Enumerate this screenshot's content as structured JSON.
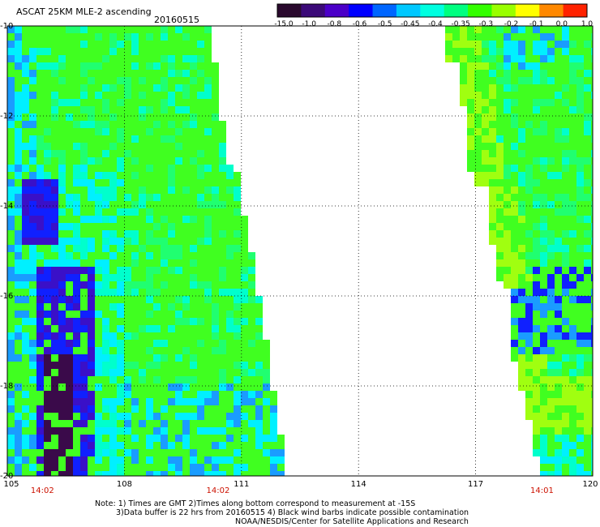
{
  "header": {
    "title": "ASCAT 25KM MLE-2 ascending",
    "date": "20160515"
  },
  "colorbar": {
    "ticks": [
      "-15.0",
      "-1.0",
      "-0.8",
      "-0.6",
      "-0.5",
      "-0.45",
      "-0.4",
      "-0.35",
      "-0.3",
      "-0.2",
      "-0.1",
      "0.0",
      "1.0"
    ],
    "colors": [
      "#2a0a2e",
      "#3b0a78",
      "#4b00c8",
      "#0000ff",
      "#0066ff",
      "#00c8ff",
      "#00ffe0",
      "#00ff80",
      "#33ff00",
      "#99ff00",
      "#ffff00",
      "#ff8800",
      "#ff2200"
    ]
  },
  "map": {
    "lon_ticks": [
      "105",
      "108",
      "111",
      "114",
      "117",
      "120"
    ],
    "lat_ticks": [
      "-10",
      "-12",
      "-14",
      "-16",
      "-18",
      "-20"
    ],
    "lon_range": [
      105,
      120
    ],
    "lat_range": [
      -20,
      -10
    ],
    "swath_times": [
      "14:02",
      "14:02",
      "14:01"
    ],
    "swath_time_lons": [
      105.9,
      110.4,
      118.7
    ],
    "grid": true
  },
  "notes": {
    "line1": "Note: 1) Times are GMT 2)Times along bottom correspond to measurement at -15S",
    "line2": "3)Data buffer is 22 hrs from 20160515 4) Black wind barbs indicate possible contamination",
    "line3": "NOAA/NESDIS/Center for Satellite Applications and Research"
  },
  "palette": {
    "deep_purple": "#3a0a4a",
    "indigo": "#3a10c8",
    "blue": "#1020ff",
    "sky": "#1a9cff",
    "cyan": "#00f0ff",
    "aqua": "#00ffcc",
    "spring": "#20ff70",
    "green": "#40ff20",
    "lime": "#a0ff10"
  }
}
